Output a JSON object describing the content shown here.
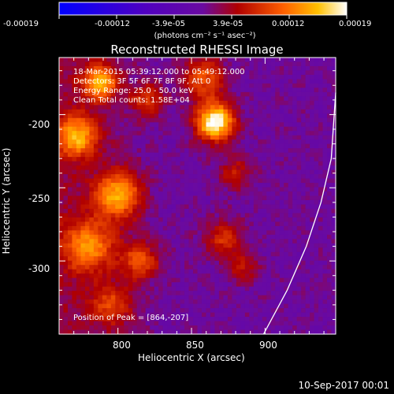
{
  "colorbar": {
    "ticks": [
      "-0.00019",
      "-0.00012",
      "-3.9e-05",
      "3.9e-05",
      "0.00012",
      "0.00019"
    ],
    "units": "(photons cm⁻² s⁻¹ asec⁻²)"
  },
  "info": {
    "line1": "18-Mar-2015 05:39:12.000 to 05:49:12.000",
    "line2": "Detectors: 3F 5F 6F 7F 8F 9F, Att 0",
    "line3": "Energy Range: 25.0 - 50.0 keV",
    "line4": "Clean     Total counts: 1.58E+04",
    "peak": "Position of Peak = [864,-207]"
  },
  "timestamp": "10-Sep-2017 00:01",
  "chart_data": {
    "type": "heatmap",
    "title": "Reconstructed RHESSI Image",
    "xlabel": "Heliocentric X (arcsec)",
    "ylabel": "Heliocentric Y (arcsec)",
    "xlim": [
      760,
      948
    ],
    "ylim": [
      -350,
      -161
    ],
    "xticks": [
      800,
      850,
      900
    ],
    "yticks": [
      -200,
      -250,
      -300
    ],
    "colorbar_range": [
      -0.00019,
      0.00019
    ],
    "limb_curve": [
      [
        899,
        -350
      ],
      [
        915,
        -320
      ],
      [
        928,
        -290
      ],
      [
        938,
        -260
      ],
      [
        945,
        -230
      ],
      [
        948,
        -185
      ]
    ]
  }
}
